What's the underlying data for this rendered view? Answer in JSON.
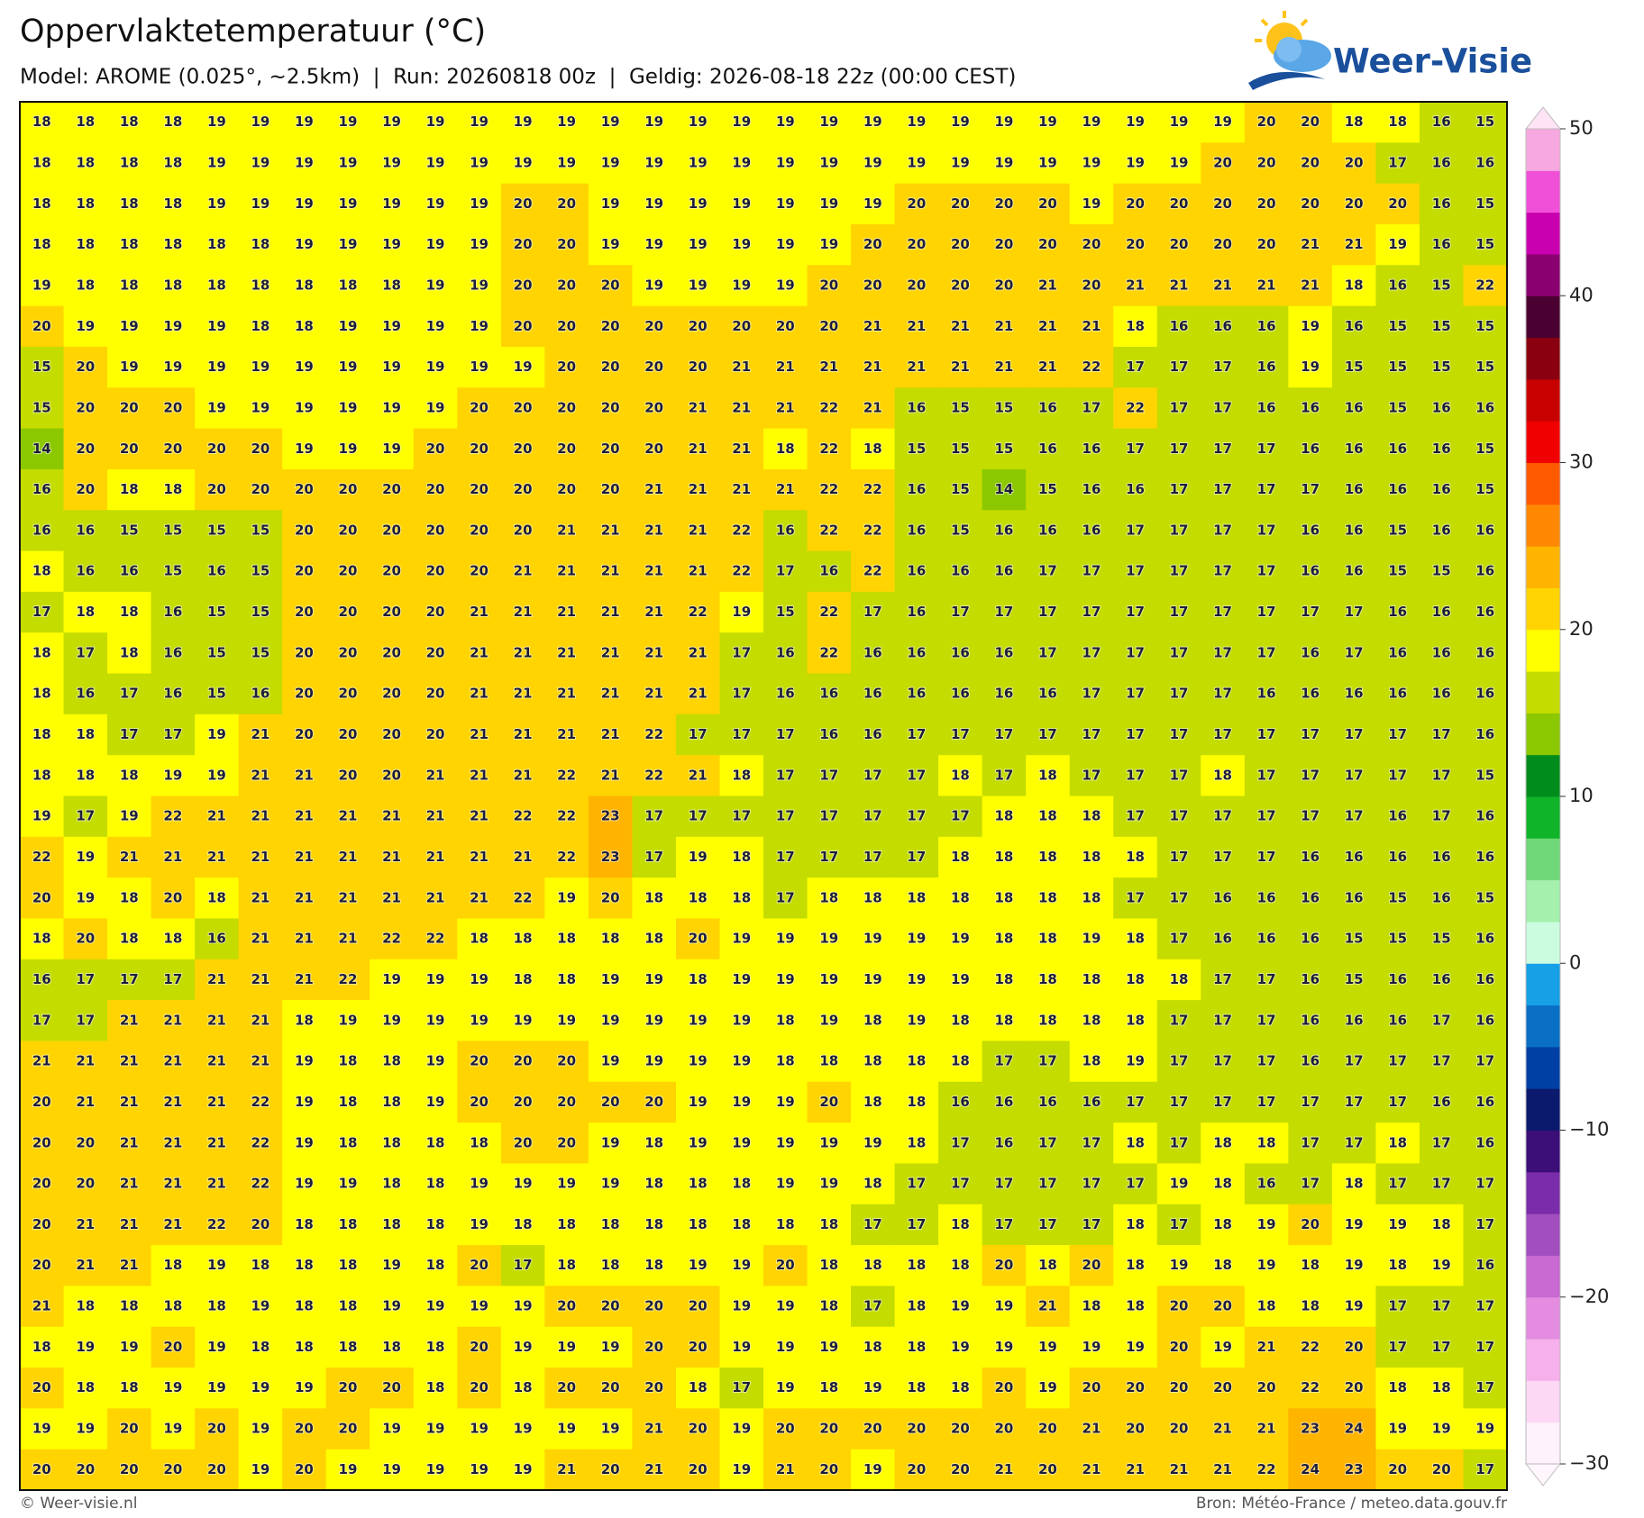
{
  "chart_data": {
    "type": "grid",
    "title": "Oppervlaktetemperatuur (°C)",
    "subtitle": "Model: AROME (0.025°, ~2.5km)  |  Run: 20260818 00z  |  Geldig: 2026-08-18 22z (00:00 CEST)",
    "values": [
      [
        18,
        18,
        18,
        18,
        19,
        19,
        19,
        19,
        19,
        19,
        19,
        19,
        19,
        19,
        19,
        19,
        19,
        19,
        19,
        19,
        19,
        19,
        19,
        19,
        19,
        19,
        19,
        19,
        20,
        20,
        18,
        18,
        16,
        15
      ],
      [
        18,
        18,
        18,
        18,
        19,
        19,
        19,
        19,
        19,
        19,
        19,
        19,
        19,
        19,
        19,
        19,
        19,
        19,
        19,
        19,
        19,
        19,
        19,
        19,
        19,
        19,
        19,
        20,
        20,
        20,
        20,
        17,
        16,
        16
      ],
      [
        18,
        18,
        18,
        18,
        19,
        19,
        19,
        19,
        19,
        19,
        19,
        20,
        20,
        19,
        19,
        19,
        19,
        19,
        19,
        19,
        20,
        20,
        20,
        20,
        19,
        20,
        20,
        20,
        20,
        20,
        20,
        20,
        16,
        15
      ],
      [
        18,
        18,
        18,
        18,
        18,
        18,
        19,
        19,
        19,
        19,
        19,
        20,
        20,
        19,
        19,
        19,
        19,
        19,
        19,
        20,
        20,
        20,
        20,
        20,
        20,
        20,
        20,
        20,
        20,
        21,
        21,
        19,
        16,
        15
      ],
      [
        19,
        18,
        18,
        18,
        18,
        18,
        18,
        18,
        18,
        19,
        19,
        20,
        20,
        20,
        19,
        19,
        19,
        19,
        20,
        20,
        20,
        20,
        20,
        21,
        20,
        21,
        21,
        21,
        21,
        21,
        18,
        16,
        15,
        22
      ],
      [
        20,
        19,
        19,
        19,
        19,
        18,
        18,
        19,
        19,
        19,
        19,
        20,
        20,
        20,
        20,
        20,
        20,
        20,
        20,
        21,
        21,
        21,
        21,
        21,
        21,
        18,
        16,
        16,
        16,
        19,
        16,
        15,
        15,
        15
      ],
      [
        15,
        20,
        19,
        19,
        19,
        19,
        19,
        19,
        19,
        19,
        19,
        19,
        20,
        20,
        20,
        20,
        21,
        21,
        21,
        21,
        21,
        21,
        21,
        21,
        22,
        17,
        17,
        17,
        16,
        19,
        15,
        15,
        15,
        15
      ],
      [
        15,
        20,
        20,
        20,
        19,
        19,
        19,
        19,
        19,
        19,
        20,
        20,
        20,
        20,
        20,
        21,
        21,
        21,
        22,
        21,
        16,
        15,
        15,
        16,
        17,
        22,
        17,
        17,
        16,
        16,
        16,
        15,
        16,
        16
      ],
      [
        14,
        20,
        20,
        20,
        20,
        20,
        19,
        19,
        19,
        20,
        20,
        20,
        20,
        20,
        20,
        21,
        21,
        18,
        22,
        18,
        15,
        15,
        15,
        16,
        16,
        17,
        17,
        17,
        17,
        16,
        16,
        16,
        16,
        15
      ],
      [
        16,
        20,
        18,
        18,
        20,
        20,
        20,
        20,
        20,
        20,
        20,
        20,
        20,
        20,
        21,
        21,
        21,
        21,
        22,
        22,
        16,
        15,
        14,
        15,
        16,
        16,
        17,
        17,
        17,
        17,
        16,
        16,
        16,
        15
      ],
      [
        16,
        16,
        15,
        15,
        15,
        15,
        20,
        20,
        20,
        20,
        20,
        20,
        21,
        21,
        21,
        21,
        22,
        16,
        22,
        22,
        16,
        15,
        16,
        16,
        16,
        17,
        17,
        17,
        17,
        16,
        16,
        15,
        16,
        16
      ],
      [
        18,
        16,
        16,
        15,
        16,
        15,
        20,
        20,
        20,
        20,
        20,
        21,
        21,
        21,
        21,
        21,
        22,
        17,
        16,
        22,
        16,
        16,
        16,
        17,
        17,
        17,
        17,
        17,
        17,
        16,
        16,
        15,
        15,
        16
      ],
      [
        17,
        18,
        18,
        16,
        15,
        15,
        20,
        20,
        20,
        20,
        21,
        21,
        21,
        21,
        21,
        22,
        19,
        15,
        22,
        17,
        16,
        17,
        17,
        17,
        17,
        17,
        17,
        17,
        17,
        17,
        17,
        16,
        16,
        16
      ],
      [
        18,
        17,
        18,
        16,
        15,
        15,
        20,
        20,
        20,
        20,
        21,
        21,
        21,
        21,
        21,
        21,
        17,
        16,
        22,
        16,
        16,
        16,
        16,
        17,
        17,
        17,
        17,
        17,
        17,
        16,
        17,
        16,
        16,
        16
      ],
      [
        18,
        16,
        17,
        16,
        15,
        16,
        20,
        20,
        20,
        20,
        21,
        21,
        21,
        21,
        21,
        21,
        17,
        16,
        16,
        16,
        16,
        16,
        16,
        16,
        17,
        17,
        17,
        17,
        16,
        16,
        16,
        16,
        16,
        16
      ],
      [
        18,
        18,
        17,
        17,
        19,
        21,
        20,
        20,
        20,
        20,
        21,
        21,
        21,
        21,
        22,
        17,
        17,
        17,
        16,
        16,
        17,
        17,
        17,
        17,
        17,
        17,
        17,
        17,
        17,
        17,
        17,
        17,
        17,
        16
      ],
      [
        18,
        18,
        18,
        19,
        19,
        21,
        21,
        20,
        20,
        21,
        21,
        21,
        22,
        21,
        22,
        21,
        18,
        17,
        17,
        17,
        17,
        18,
        17,
        18,
        17,
        17,
        17,
        18,
        17,
        17,
        17,
        17,
        17,
        15
      ],
      [
        19,
        17,
        19,
        22,
        21,
        21,
        21,
        21,
        21,
        21,
        21,
        22,
        22,
        23,
        17,
        17,
        17,
        17,
        17,
        17,
        17,
        17,
        18,
        18,
        18,
        17,
        17,
        17,
        17,
        17,
        17,
        16,
        17,
        16
      ],
      [
        22,
        19,
        21,
        21,
        21,
        21,
        21,
        21,
        21,
        21,
        21,
        21,
        22,
        23,
        17,
        19,
        18,
        17,
        17,
        17,
        17,
        18,
        18,
        18,
        18,
        18,
        17,
        17,
        17,
        16,
        16,
        16,
        16,
        16
      ],
      [
        20,
        19,
        18,
        20,
        18,
        21,
        21,
        21,
        21,
        21,
        21,
        22,
        19,
        20,
        18,
        18,
        18,
        17,
        18,
        18,
        18,
        18,
        18,
        18,
        18,
        17,
        17,
        16,
        16,
        16,
        16,
        15,
        16,
        15
      ],
      [
        18,
        20,
        18,
        18,
        16,
        21,
        21,
        21,
        22,
        22,
        18,
        18,
        18,
        18,
        18,
        20,
        19,
        19,
        19,
        19,
        19,
        19,
        18,
        18,
        19,
        18,
        17,
        16,
        16,
        16,
        15,
        15,
        15,
        16
      ],
      [
        16,
        17,
        17,
        17,
        21,
        21,
        21,
        22,
        19,
        19,
        19,
        18,
        18,
        19,
        19,
        18,
        19,
        19,
        19,
        19,
        19,
        19,
        18,
        18,
        18,
        18,
        18,
        17,
        17,
        16,
        15,
        16,
        16,
        16
      ],
      [
        17,
        17,
        21,
        21,
        21,
        21,
        18,
        19,
        19,
        19,
        19,
        19,
        19,
        19,
        19,
        19,
        19,
        18,
        19,
        18,
        19,
        18,
        18,
        18,
        18,
        18,
        17,
        17,
        17,
        16,
        16,
        16,
        17,
        16
      ],
      [
        21,
        21,
        21,
        21,
        21,
        21,
        19,
        18,
        18,
        19,
        20,
        20,
        20,
        19,
        19,
        19,
        19,
        18,
        18,
        18,
        18,
        18,
        17,
        17,
        18,
        19,
        17,
        17,
        17,
        16,
        17,
        17,
        17,
        17
      ],
      [
        20,
        21,
        21,
        21,
        21,
        22,
        19,
        18,
        18,
        19,
        20,
        20,
        20,
        20,
        20,
        19,
        19,
        19,
        20,
        18,
        18,
        16,
        16,
        16,
        16,
        17,
        17,
        17,
        17,
        17,
        17,
        17,
        16,
        16
      ],
      [
        20,
        20,
        21,
        21,
        21,
        22,
        19,
        18,
        18,
        18,
        18,
        20,
        20,
        19,
        18,
        19,
        19,
        19,
        19,
        19,
        18,
        17,
        16,
        17,
        17,
        18,
        17,
        18,
        18,
        17,
        17,
        18,
        17,
        16
      ],
      [
        20,
        20,
        21,
        21,
        21,
        22,
        19,
        19,
        18,
        18,
        19,
        19,
        19,
        19,
        18,
        18,
        18,
        19,
        19,
        18,
        17,
        17,
        17,
        17,
        17,
        17,
        19,
        18,
        16,
        17,
        18,
        17,
        17,
        17
      ],
      [
        20,
        21,
        21,
        21,
        22,
        20,
        18,
        18,
        18,
        18,
        19,
        18,
        18,
        18,
        18,
        18,
        18,
        18,
        18,
        17,
        17,
        18,
        17,
        17,
        17,
        18,
        17,
        18,
        19,
        20,
        19,
        19,
        18,
        17
      ],
      [
        20,
        21,
        21,
        18,
        19,
        18,
        18,
        18,
        19,
        18,
        20,
        17,
        18,
        18,
        18,
        19,
        19,
        20,
        18,
        18,
        18,
        18,
        20,
        18,
        20,
        18,
        19,
        18,
        19,
        18,
        19,
        18,
        19,
        16
      ],
      [
        21,
        18,
        18,
        18,
        18,
        19,
        18,
        18,
        19,
        19,
        19,
        19,
        20,
        20,
        20,
        20,
        19,
        19,
        18,
        17,
        18,
        19,
        19,
        21,
        18,
        18,
        20,
        20,
        18,
        18,
        19,
        17,
        17,
        17
      ],
      [
        18,
        19,
        19,
        20,
        19,
        18,
        18,
        18,
        18,
        18,
        20,
        19,
        19,
        19,
        20,
        20,
        19,
        19,
        19,
        18,
        18,
        19,
        19,
        19,
        19,
        19,
        20,
        19,
        21,
        22,
        20,
        17,
        17,
        17
      ],
      [
        20,
        18,
        18,
        19,
        19,
        19,
        19,
        20,
        20,
        18,
        20,
        18,
        20,
        20,
        20,
        18,
        17,
        19,
        18,
        19,
        18,
        18,
        20,
        19,
        20,
        20,
        20,
        20,
        20,
        22,
        20,
        18,
        18,
        17
      ],
      [
        19,
        19,
        20,
        19,
        20,
        19,
        20,
        20,
        19,
        19,
        19,
        19,
        19,
        19,
        21,
        20,
        19,
        20,
        20,
        20,
        20,
        20,
        20,
        20,
        21,
        20,
        20,
        21,
        21,
        23,
        24,
        19,
        19,
        19
      ],
      [
        20,
        20,
        20,
        20,
        20,
        19,
        20,
        19,
        19,
        19,
        19,
        19,
        21,
        20,
        21,
        20,
        19,
        21,
        20,
        19,
        20,
        20,
        21,
        20,
        21,
        21,
        21,
        21,
        22,
        24,
        23,
        20,
        20,
        17
      ]
    ],
    "colorbar": {
      "lim": [
        -30,
        50
      ],
      "ticks": [
        50,
        40,
        30,
        20,
        10,
        0,
        {
          "value": -10,
          "label": "−10"
        },
        {
          "value": -20,
          "label": "−20"
        },
        {
          "value": -30,
          "label": "−30"
        }
      ],
      "colors": [
        "#fef2fb",
        "#fdd8f5",
        "#f6b0ec",
        "#e48ce0",
        "#c86ad2",
        "#a24ebe",
        "#7a2caa",
        "#3c0e78",
        "#0c1a6e",
        "#0040a4",
        "#0a70c6",
        "#18a0e6",
        "#ccfce0",
        "#a4f0ac",
        "#70d878",
        "#10b428",
        "#008c1c",
        "#8cc800",
        "#c4dc00",
        "#ffff00",
        "#ffd400",
        "#ffb400",
        "#ff8800",
        "#ff5a00",
        "#f00000",
        "#c80000",
        "#8a0010",
        "#4a0030",
        "#8a0070",
        "#c800b0",
        "#f050d8",
        "#f8a8e0"
      ],
      "over_color": "#ffe4f6",
      "under_color": "#fef6fc"
    }
  },
  "logo": "Weer-Visie",
  "footer": {
    "left": "© Weer-visie.nl",
    "right": "Bron: Météo-France / meteo.data.gouv.fr"
  }
}
